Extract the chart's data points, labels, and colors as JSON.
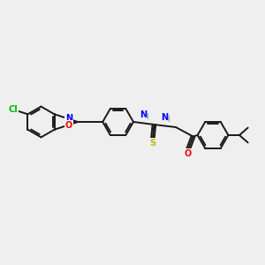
{
  "background_color": "#efefef",
  "bond_color": "#1a1a1a",
  "atom_colors": {
    "Cl": "#00bb00",
    "N": "#0000ff",
    "O": "#ff0000",
    "S": "#bbbb00",
    "H": "#5a8a8a",
    "C": "#1a1a1a"
  },
  "figsize": [
    3.0,
    3.0
  ],
  "dpi": 100,
  "xlim": [
    0,
    10
  ],
  "ylim": [
    0,
    10
  ]
}
